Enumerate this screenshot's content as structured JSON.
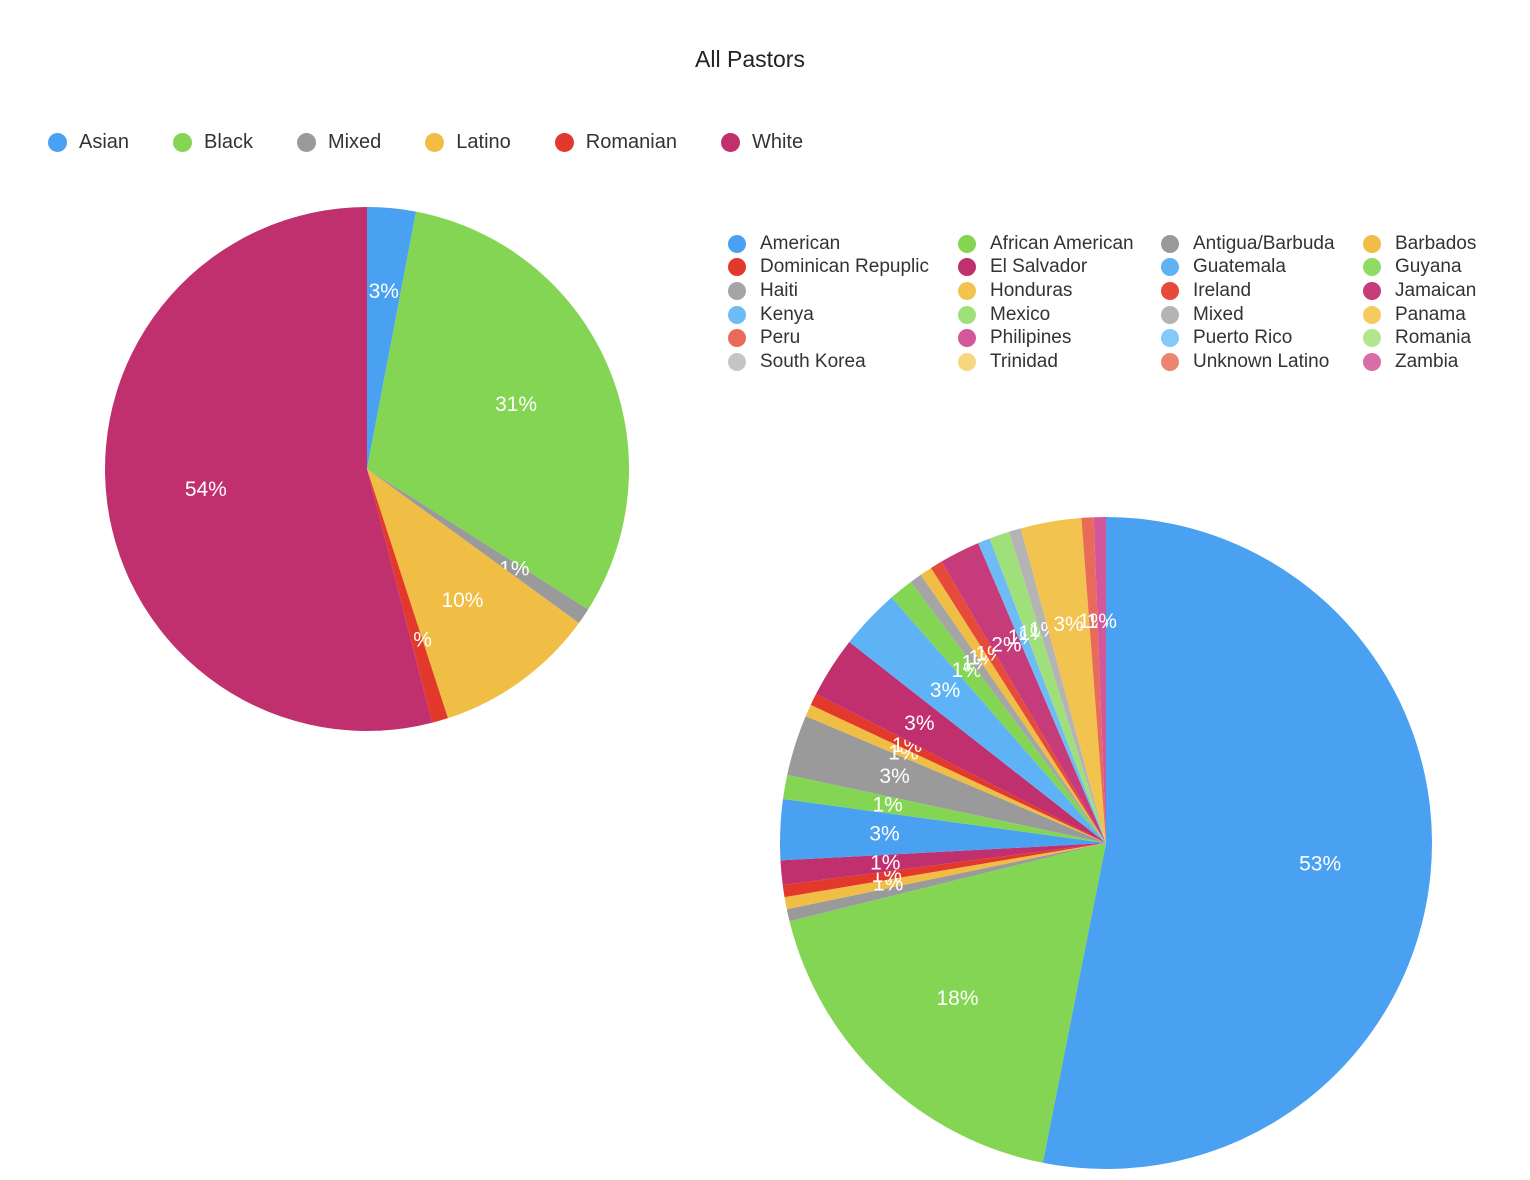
{
  "chart_data": [
    {
      "type": "pie",
      "title": "All Pastors",
      "legend_position": "top",
      "slices": [
        {
          "label": "Asian",
          "value": 3,
          "value_label": "3%",
          "color": "#4aa0f1"
        },
        {
          "label": "Black",
          "value": 31,
          "value_label": "31%",
          "color": "#83d553"
        },
        {
          "label": "Mixed",
          "value": 1,
          "value_label": "1%",
          "color": "#9a9a9a"
        },
        {
          "label": "Latino",
          "value": 10,
          "value_label": "10%",
          "color": "#f0bd45"
        },
        {
          "label": "Romanian",
          "value": 1,
          "value_label": "1%",
          "color": "#e3392c"
        },
        {
          "label": "White",
          "value": 54,
          "value_label": "54%",
          "color": "#c0306e"
        }
      ]
    },
    {
      "type": "pie",
      "legend_position": "top-right",
      "legend": [
        {
          "label": "American",
          "color": "#4aa0f1"
        },
        {
          "label": "African American",
          "color": "#83d553"
        },
        {
          "label": "Antigua/Barbuda",
          "color": "#9a9a9a"
        },
        {
          "label": "Barbados",
          "color": "#f0bd45"
        },
        {
          "label": "Dominican Repuplic",
          "color": "#e3392c"
        },
        {
          "label": "El Salvador",
          "color": "#c0306e"
        },
        {
          "label": "Guatemala",
          "color": "#5db3f6"
        },
        {
          "label": "Guyana",
          "color": "#8edc63"
        },
        {
          "label": "Haiti",
          "color": "#a5a5a5"
        },
        {
          "label": "Honduras",
          "color": "#f2c34f"
        },
        {
          "label": "Ireland",
          "color": "#e64a3a"
        },
        {
          "label": "Jamaican",
          "color": "#c63b7a"
        },
        {
          "label": "Kenya",
          "color": "#6dbcf6"
        },
        {
          "label": "Mexico",
          "color": "#9fe07b"
        },
        {
          "label": "Mixed",
          "color": "#b4b4b4"
        },
        {
          "label": "Panama",
          "color": "#f5ca5e"
        },
        {
          "label": "Peru",
          "color": "#ea6a5a"
        },
        {
          "label": "Philipines",
          "color": "#d2579b"
        },
        {
          "label": "Puerto Rico",
          "color": "#84c9f8"
        },
        {
          "label": "Romania",
          "color": "#b2e68e"
        },
        {
          "label": "South Korea",
          "color": "#c5c5c5"
        },
        {
          "label": "Trinidad",
          "color": "#f6d77f"
        },
        {
          "label": "Unknown Latino",
          "color": "#ec8470"
        },
        {
          "label": "Zambia",
          "color": "#da6ca8"
        }
      ],
      "slices": [
        {
          "label": "American",
          "value": 53,
          "value_label": "53%",
          "color": "#4aa0f1"
        },
        {
          "label": "African American",
          "value": 18,
          "value_label": "18%",
          "color": "#83d553"
        },
        {
          "label": "Antigua/Barbuda",
          "value": 0.6,
          "value_label": "",
          "color": "#9a9a9a"
        },
        {
          "label": "Barbados",
          "value": 0.6,
          "value_label": "1%",
          "color": "#f0bd45"
        },
        {
          "label": "Dominican Repuplic",
          "value": 0.6,
          "value_label": "1%",
          "color": "#e3392c"
        },
        {
          "label": "El Salvador",
          "value": 1.2,
          "value_label": "1%",
          "color": "#c0306e"
        },
        {
          "label": "Guatemala",
          "value": 3,
          "value_label": "3%",
          "color": "#4aa0f1"
        },
        {
          "label": "Guyana",
          "value": 1.2,
          "value_label": "1%",
          "color": "#83d553"
        },
        {
          "label": "Haiti",
          "value": 3,
          "value_label": "3%",
          "color": "#9a9a9a"
        },
        {
          "label": "Honduras",
          "value": 0.6,
          "value_label": "1%",
          "color": "#f0bd45"
        },
        {
          "label": "Ireland",
          "value": 0.6,
          "value_label": "1%",
          "color": "#e3392c"
        },
        {
          "label": "Jamaican",
          "value": 3,
          "value_label": "3%",
          "color": "#c0306e"
        },
        {
          "label": "Kenya",
          "value": 3,
          "value_label": "3%",
          "color": "#5db3f6"
        },
        {
          "label": "Mexico",
          "value": 1.2,
          "value_label": "1%",
          "color": "#83d553"
        },
        {
          "label": "Mixed",
          "value": 0.6,
          "value_label": "1%",
          "color": "#a5a5a5"
        },
        {
          "label": "Panama",
          "value": 0.6,
          "value_label": "1%",
          "color": "#f0bd45"
        },
        {
          "label": "Peru",
          "value": 0.6,
          "value_label": "1%",
          "color": "#e64a3a"
        },
        {
          "label": "Philipines",
          "value": 2,
          "value_label": "2%",
          "color": "#c63b7a"
        },
        {
          "label": "Puerto Rico",
          "value": 0.6,
          "value_label": "1%",
          "color": "#6dbcf6"
        },
        {
          "label": "Romania",
          "value": 1,
          "value_label": "1%",
          "color": "#9fe07b"
        },
        {
          "label": "South Korea",
          "value": 0.6,
          "value_label": "1%",
          "color": "#b4b4b4"
        },
        {
          "label": "Trinidad",
          "value": 3,
          "value_label": "3%",
          "color": "#f2c34f"
        },
        {
          "label": "Unknown Latino",
          "value": 0.6,
          "value_label": "1%",
          "color": "#ea6a5a"
        },
        {
          "label": "Zambia",
          "value": 0.6,
          "value_label": "1%",
          "color": "#d2579b"
        }
      ]
    }
  ]
}
